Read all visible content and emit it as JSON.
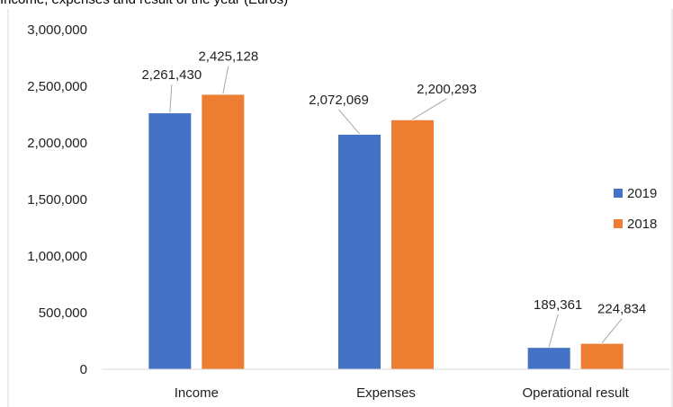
{
  "chart_data": {
    "type": "bar",
    "title": "Income, expenses and result of the year (Euros)",
    "categories": [
      "Income",
      "Expenses",
      "Operational result"
    ],
    "series": [
      {
        "name": "2019",
        "color": "#4472C4",
        "values": [
          2261430,
          2072069,
          189361
        ]
      },
      {
        "name": "2018",
        "color": "#ED7D31",
        "values": [
          2425128,
          2200293,
          224834
        ]
      }
    ],
    "data_labels": [
      [
        "2,261,430",
        "2,072,069",
        "189,361"
      ],
      [
        "2,425,128",
        "2,200,293",
        "224,834"
      ]
    ],
    "ylim": [
      0,
      3000000
    ],
    "yticks": [
      0,
      500000,
      1000000,
      1500000,
      2000000,
      2500000,
      3000000
    ],
    "ytick_labels": [
      "0",
      "500,000",
      "1,000,000",
      "1,500,000",
      "2,000,000",
      "2,500,000",
      "3,000,000"
    ],
    "legend_position": "right",
    "grid": false
  }
}
